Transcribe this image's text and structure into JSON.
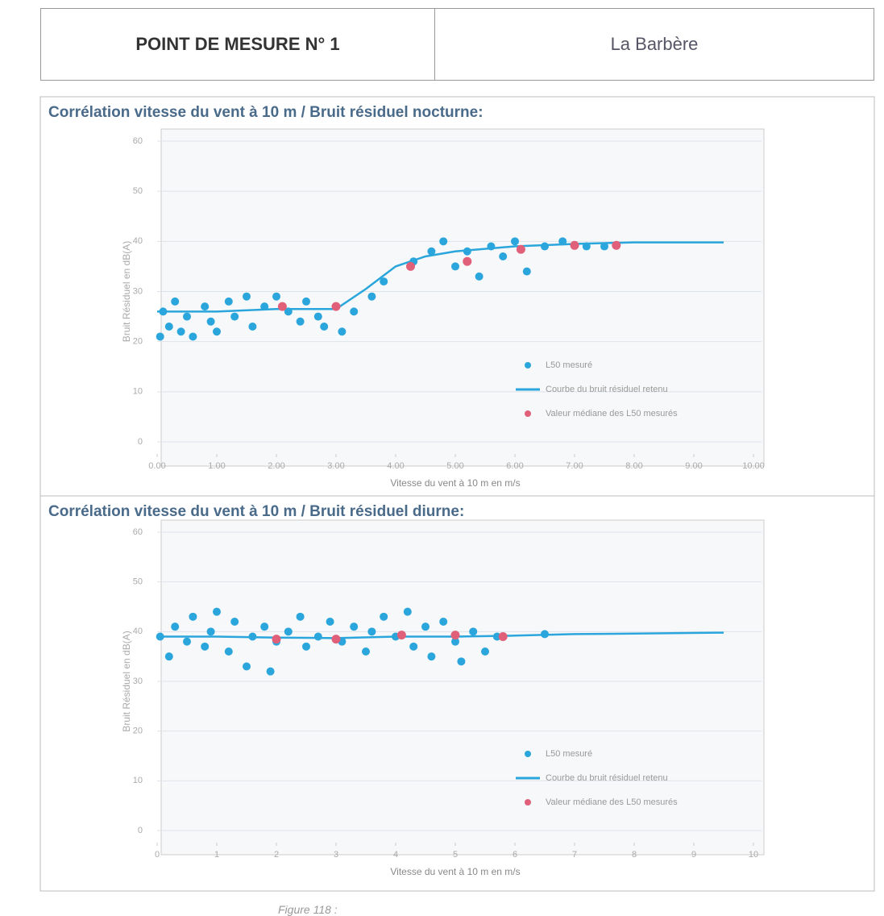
{
  "header": {
    "left": "POINT DE MESURE N° 1",
    "right": "La Barbère"
  },
  "caption": "Figure 118 :",
  "chart_data": [
    {
      "type": "scatter",
      "title": "Corrélation vitesse du vent à 10 m / Bruit résiduel nocturne:",
      "x_label": "Vitesse du vent à 10 m en m/s",
      "y_label": "Bruit Résiduel en dB(A)",
      "xlim": [
        0,
        10
      ],
      "ylim": [
        0,
        60
      ],
      "grid": true,
      "legend": "lower right",
      "xticks": [
        {
          "value": 0,
          "label": "0.00"
        },
        {
          "value": 1,
          "label": "1.00"
        },
        {
          "value": 2,
          "label": "2.00"
        },
        {
          "value": 3,
          "label": "3.00"
        },
        {
          "value": 4,
          "label": "4.00"
        },
        {
          "value": 5,
          "label": "5.00"
        },
        {
          "value": 6,
          "label": "6.00"
        },
        {
          "value": 7,
          "label": "7.00"
        },
        {
          "value": 8,
          "label": "8.00"
        },
        {
          "value": 9,
          "label": "9.00"
        },
        {
          "value": 10,
          "label": "10.00"
        }
      ],
      "yticks": [
        0,
        10,
        20,
        30,
        40,
        50,
        60
      ],
      "series": [
        {
          "name": "L50 mesuré",
          "mode": "markers",
          "color": "#2aa6dc",
          "x": [
            0.05,
            0.1,
            0.2,
            0.3,
            0.4,
            0.5,
            0.6,
            0.8,
            0.9,
            1.0,
            1.2,
            1.3,
            1.5,
            1.6,
            1.8,
            2.0,
            2.2,
            2.4,
            2.5,
            2.7,
            2.8,
            3.0,
            3.1,
            3.3,
            3.6,
            3.8,
            4.3,
            4.6,
            4.8,
            5.0,
            5.2,
            5.4,
            5.6,
            5.8,
            6.0,
            6.2,
            6.5,
            6.8,
            7.2,
            7.5
          ],
          "values": [
            21,
            26,
            23,
            28,
            22,
            25,
            21,
            27,
            24,
            22,
            28,
            25,
            29,
            23,
            27,
            29,
            26,
            24,
            28,
            25,
            23,
            27,
            22,
            26,
            29,
            32,
            36,
            38,
            40,
            35,
            38,
            33,
            39,
            37,
            40,
            34,
            39,
            40,
            39,
            39
          ]
        },
        {
          "name": "Courbe du bruit résiduel retenu",
          "mode": "line",
          "color": "#2aa6dc",
          "x": [
            0,
            1,
            2,
            3,
            3.5,
            4,
            4.5,
            5,
            6,
            7,
            8,
            9.5
          ],
          "values": [
            26,
            26,
            26.5,
            26.5,
            30.5,
            35,
            37,
            38,
            39,
            39.5,
            39.8,
            39.8
          ]
        },
        {
          "name": "Valeur médiane des L50 mesurés",
          "mode": "markers",
          "color": "#e0607a",
          "x": [
            2.1,
            3.0,
            4.25,
            5.2,
            6.1,
            7.0,
            7.7
          ],
          "values": [
            27,
            27,
            35,
            36,
            38.4,
            39.2,
            39.2
          ]
        }
      ]
    },
    {
      "type": "scatter",
      "title": "Corrélation vitesse du vent à 10 m / Bruit résiduel diurne:",
      "x_label": "Vitesse du vent à 10 m en m/s",
      "y_label": "Bruit Résiduel en dB(A)",
      "xlim": [
        0,
        10
      ],
      "ylim": [
        0,
        60
      ],
      "grid": true,
      "legend": "lower right",
      "xticks": [
        0,
        1,
        2,
        3,
        4,
        5,
        6,
        7,
        8,
        9,
        10
      ],
      "yticks": [
        0,
        10,
        20,
        30,
        40,
        50,
        60
      ],
      "series": [
        {
          "name": "L50 mesuré",
          "mode": "markers",
          "color": "#2aa6dc",
          "x": [
            0.05,
            0.2,
            0.3,
            0.5,
            0.6,
            0.8,
            0.9,
            1.0,
            1.2,
            1.3,
            1.5,
            1.6,
            1.8,
            1.9,
            2.0,
            2.2,
            2.4,
            2.5,
            2.7,
            2.9,
            3.1,
            3.3,
            3.5,
            3.6,
            3.8,
            4.0,
            4.2,
            4.3,
            4.5,
            4.6,
            4.8,
            5.0,
            5.1,
            5.3,
            5.5,
            5.7,
            6.5
          ],
          "values": [
            39,
            35,
            41,
            38,
            43,
            37,
            40,
            44,
            36,
            42,
            33,
            39,
            41,
            32,
            38,
            40,
            43,
            37,
            39,
            42,
            38,
            41,
            36,
            40,
            43,
            39,
            44,
            37,
            41,
            35,
            42,
            38,
            34,
            40,
            36,
            39,
            39.5
          ]
        },
        {
          "name": "Courbe du bruit résiduel retenu",
          "mode": "line",
          "color": "#2aa6dc",
          "x": [
            0,
            1,
            2,
            3,
            4,
            5,
            6,
            7,
            8,
            9.5
          ],
          "values": [
            39,
            39,
            38.8,
            38.7,
            39,
            39,
            39.2,
            39.5,
            39.6,
            39.8
          ]
        },
        {
          "name": "Valeur médiane des L50 mesurés",
          "mode": "markers",
          "color": "#e0607a",
          "x": [
            2.0,
            3.0,
            4.1,
            5.0,
            5.8
          ],
          "values": [
            38.5,
            38.5,
            39.3,
            39.3,
            39
          ]
        }
      ]
    }
  ]
}
